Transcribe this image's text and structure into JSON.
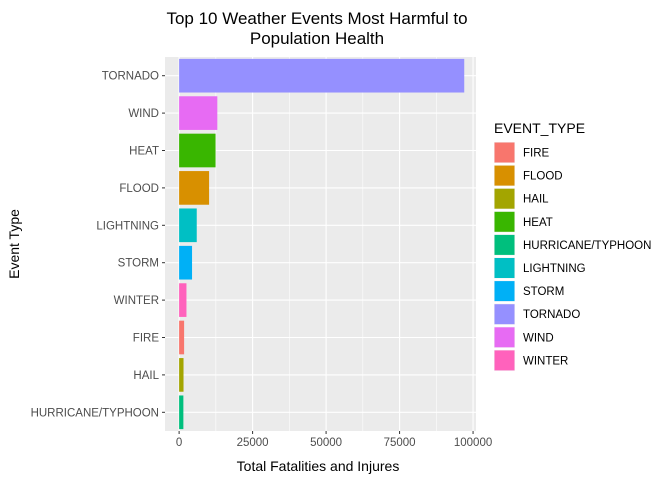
{
  "chart_data": {
    "type": "bar",
    "orientation": "horizontal",
    "title": [
      "Top 10 Weather Events Most Harmful to",
      "Population Health"
    ],
    "xlabel": "Total Fatalities and Injures",
    "ylabel": "Event Type",
    "xlim": [
      -4800,
      101000
    ],
    "xticks": [
      0,
      25000,
      50000,
      75000,
      100000
    ],
    "xtick_labels": [
      "0",
      "25000",
      "50000",
      "75000",
      "100000"
    ],
    "categories": [
      "TORNADO",
      "WIND",
      "HEAT",
      "FLOOD",
      "LIGHTNING",
      "STORM",
      "WINTER",
      "FIRE",
      "HAIL",
      "HURRICANE/TYPHOON"
    ],
    "values": [
      97000,
      13000,
      12400,
      10200,
      6000,
      4400,
      2500,
      1700,
      1500,
      1450
    ],
    "grid": true,
    "panel_background": "#ebebeb",
    "legend": {
      "title": "EVENT_TYPE",
      "position": "right",
      "entries": [
        {
          "label": "FIRE",
          "color": "#F8766D"
        },
        {
          "label": "FLOOD",
          "color": "#D89000"
        },
        {
          "label": "HAIL",
          "color": "#A3A500"
        },
        {
          "label": "HEAT",
          "color": "#39B600"
        },
        {
          "label": "HURRICANE/TYPHOON",
          "color": "#00BF7D"
        },
        {
          "label": "LIGHTNING",
          "color": "#00BFC4"
        },
        {
          "label": "STORM",
          "color": "#00B0F6"
        },
        {
          "label": "TORNADO",
          "color": "#9590FF"
        },
        {
          "label": "WIND",
          "color": "#E76BF3"
        },
        {
          "label": "WINTER",
          "color": "#FF62BC"
        }
      ]
    }
  }
}
